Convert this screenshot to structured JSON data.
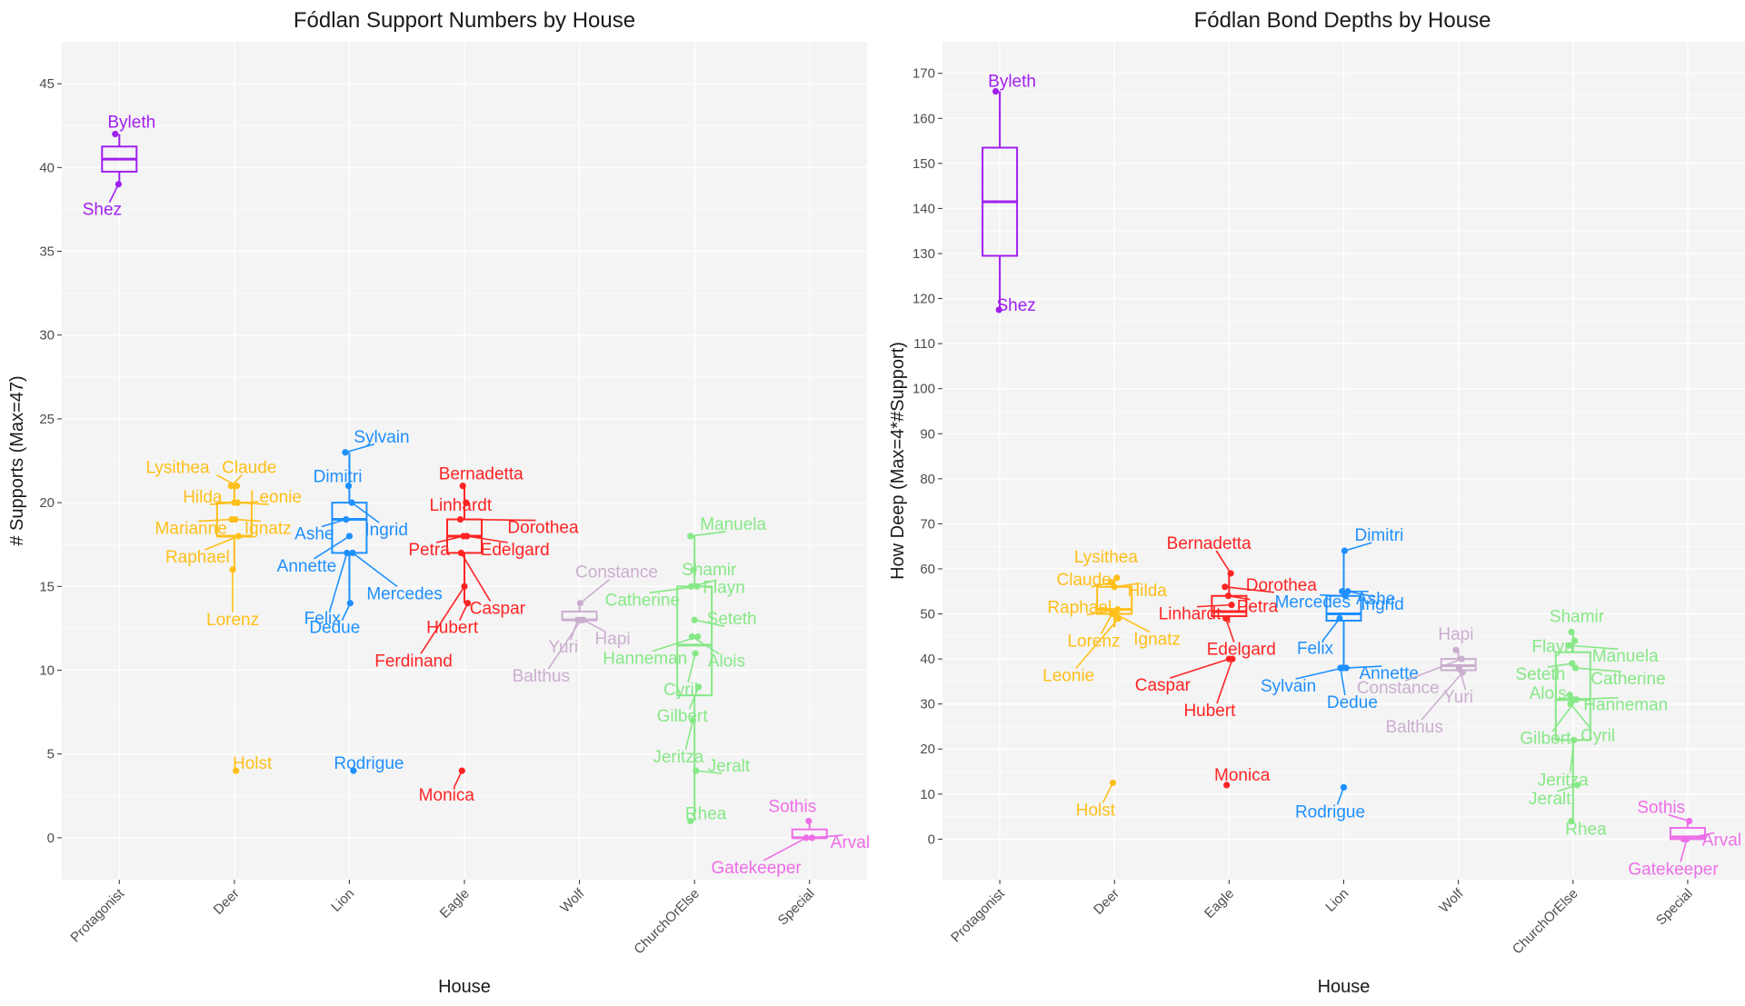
{
  "figure": {
    "colors": {
      "Protagonist": "#a020f0",
      "Deer": "#ffbf1a",
      "Lion": "#1e90ff",
      "Eagle": "#ff2424",
      "Wolf": "#cbaecf",
      "ChurchOrElse": "#86e886",
      "Special": "#ee6ee8"
    }
  },
  "chart_data": [
    {
      "type": "box",
      "title": "Fódlan Support Numbers by House",
      "xlabel": "House",
      "ylabel": "# Supports (Max=47)",
      "ylim": [
        -2.5,
        47.5
      ],
      "yticks": [
        0,
        5,
        10,
        15,
        20,
        25,
        30,
        35,
        40,
        45
      ],
      "categories": [
        "Protagonist",
        "Deer",
        "Lion",
        "Eagle",
        "Wolf",
        "ChurchOrElse",
        "Special"
      ],
      "grid": true,
      "boxes": [
        {
          "category": "Protagonist",
          "lower": 39,
          "q1": 39.75,
          "median": 40.5,
          "q3": 41.25,
          "upper": 42
        },
        {
          "category": "Deer",
          "lower": 16,
          "q1": 18,
          "median": 18,
          "q3": 20,
          "upper": 21
        },
        {
          "category": "Lion",
          "lower": 14,
          "q1": 17,
          "median": 19,
          "q3": 20,
          "upper": 23
        },
        {
          "category": "Eagle",
          "lower": 14,
          "q1": 17,
          "median": 18,
          "q3": 19,
          "upper": 21
        },
        {
          "category": "Wolf",
          "lower": 13,
          "q1": 13,
          "median": 13,
          "q3": 13.5,
          "upper": 14
        },
        {
          "category": "ChurchOrElse",
          "lower": 1,
          "q1": 8.5,
          "median": 11.5,
          "q3": 15,
          "upper": 18
        },
        {
          "category": "Special",
          "lower": 0,
          "q1": 0,
          "median": 0,
          "q3": 0.5,
          "upper": 1
        }
      ],
      "points": [
        {
          "label": "Byleth",
          "category": "Protagonist",
          "value": 42
        },
        {
          "label": "Shez",
          "category": "Protagonist",
          "value": 39
        },
        {
          "label": "Lysithea",
          "category": "Deer",
          "value": 21
        },
        {
          "label": "Claude",
          "category": "Deer",
          "value": 21
        },
        {
          "label": "Hilda",
          "category": "Deer",
          "value": 20
        },
        {
          "label": "Leonie",
          "category": "Deer",
          "value": 20
        },
        {
          "label": "Marianne",
          "category": "Deer",
          "value": 19
        },
        {
          "label": "Ignatz",
          "category": "Deer",
          "value": 19
        },
        {
          "label": "Raphael",
          "category": "Deer",
          "value": 18
        },
        {
          "label": "Lorenz",
          "category": "Deer",
          "value": 16
        },
        {
          "label": "Holst",
          "category": "Deer",
          "value": 4
        },
        {
          "label": "Sylvain",
          "category": "Lion",
          "value": 23
        },
        {
          "label": "Dimitri",
          "category": "Lion",
          "value": 21
        },
        {
          "label": "Ingrid",
          "category": "Lion",
          "value": 20
        },
        {
          "label": "Ashe",
          "category": "Lion",
          "value": 19
        },
        {
          "label": "Annette",
          "category": "Lion",
          "value": 18
        },
        {
          "label": "Mercedes",
          "category": "Lion",
          "value": 17
        },
        {
          "label": "Felix",
          "category": "Lion",
          "value": 17
        },
        {
          "label": "Dedue",
          "category": "Lion",
          "value": 14
        },
        {
          "label": "Rodrigue",
          "category": "Lion",
          "value": 4
        },
        {
          "label": "Bernadetta",
          "category": "Eagle",
          "value": 21
        },
        {
          "label": "Linhardt",
          "category": "Eagle",
          "value": 20
        },
        {
          "label": "Dorothea",
          "category": "Eagle",
          "value": 19
        },
        {
          "label": "Petra",
          "category": "Eagle",
          "value": 18
        },
        {
          "label": "Edelgard",
          "category": "Eagle",
          "value": 18
        },
        {
          "label": "Caspar",
          "category": "Eagle",
          "value": 17
        },
        {
          "label": "Ferdinand",
          "category": "Eagle",
          "value": 15
        },
        {
          "label": "Hubert",
          "category": "Eagle",
          "value": 14
        },
        {
          "label": "Monica",
          "category": "Eagle",
          "value": 4
        },
        {
          "label": "Constance",
          "category": "Wolf",
          "value": 14
        },
        {
          "label": "Hapi",
          "category": "Wolf",
          "value": 13
        },
        {
          "label": "Yuri",
          "category": "Wolf",
          "value": 13
        },
        {
          "label": "Balthus",
          "category": "Wolf",
          "value": 13
        },
        {
          "label": "Manuela",
          "category": "ChurchOrElse",
          "value": 18
        },
        {
          "label": "Shamir",
          "category": "ChurchOrElse",
          "value": 16
        },
        {
          "label": "Catherine",
          "category": "ChurchOrElse",
          "value": 15
        },
        {
          "label": "Flayn",
          "category": "ChurchOrElse",
          "value": 15
        },
        {
          "label": "Seteth",
          "category": "ChurchOrElse",
          "value": 13
        },
        {
          "label": "Hanneman",
          "category": "ChurchOrElse",
          "value": 12
        },
        {
          "label": "Alois",
          "category": "ChurchOrElse",
          "value": 12
        },
        {
          "label": "Cyril",
          "category": "ChurchOrElse",
          "value": 11
        },
        {
          "label": "Gilbert",
          "category": "ChurchOrElse",
          "value": 9
        },
        {
          "label": "Jeritza",
          "category": "ChurchOrElse",
          "value": 7
        },
        {
          "label": "Jeralt",
          "category": "ChurchOrElse",
          "value": 4
        },
        {
          "label": "Rhea",
          "category": "ChurchOrElse",
          "value": 1
        },
        {
          "label": "Sothis",
          "category": "Special",
          "value": 1
        },
        {
          "label": "Arval",
          "category": "Special",
          "value": 0
        },
        {
          "label": "Gatekeeper",
          "category": "Special",
          "value": 0
        }
      ]
    },
    {
      "type": "box",
      "title": "Fódlan Bond Depths by House",
      "xlabel": "House",
      "ylabel": "How Deep (Max=4*#Support)",
      "ylim": [
        -9,
        177
      ],
      "yticks": [
        0,
        10,
        20,
        30,
        40,
        50,
        60,
        70,
        80,
        90,
        100,
        110,
        120,
        130,
        140,
        150,
        160,
        170
      ],
      "categories": [
        "Protagonist",
        "Deer",
        "Eagle",
        "Lion",
        "Wolf",
        "ChurchOrElse",
        "Special"
      ],
      "grid": true,
      "boxes": [
        {
          "category": "Protagonist",
          "lower": 117,
          "q1": 129.5,
          "median": 141.5,
          "q3": 153.5,
          "upper": 166
        },
        {
          "category": "Deer",
          "lower": 47,
          "q1": 50,
          "median": 51,
          "q3": 56,
          "upper": 58
        },
        {
          "category": "Eagle",
          "lower": 48,
          "q1": 49.5,
          "median": 50.5,
          "q3": 54,
          "upper": 59
        },
        {
          "category": "Lion",
          "lower": 38,
          "q1": 48.5,
          "median": 50,
          "q3": 54,
          "upper": 64
        },
        {
          "category": "Wolf",
          "lower": 37,
          "q1": 37.5,
          "median": 38.5,
          "q3": 40,
          "upper": 42
        },
        {
          "category": "ChurchOrElse",
          "lower": 4,
          "q1": 22,
          "median": 31,
          "q3": 41.5,
          "upper": 46
        },
        {
          "category": "Special",
          "lower": 0,
          "q1": 0,
          "median": 0.5,
          "q3": 2.5,
          "upper": 4
        }
      ],
      "points": [
        {
          "label": "Byleth",
          "category": "Protagonist",
          "value": 166
        },
        {
          "label": "Shez",
          "category": "Protagonist",
          "value": 117.5
        },
        {
          "label": "Lysithea",
          "category": "Deer",
          "value": 58
        },
        {
          "label": "Claude",
          "category": "Deer",
          "value": 57
        },
        {
          "label": "Hilda",
          "category": "Deer",
          "value": 56
        },
        {
          "label": "Raphael",
          "category": "Deer",
          "value": 51
        },
        {
          "label": "Lorenz",
          "category": "Deer",
          "value": 50
        },
        {
          "label": "Ignatz",
          "category": "Deer",
          "value": 50
        },
        {
          "label": "Leonie",
          "category": "Deer",
          "value": 49
        },
        {
          "label": "Holst",
          "category": "Deer",
          "value": 12.5
        },
        {
          "label": "Bernadetta",
          "category": "Eagle",
          "value": 59
        },
        {
          "label": "Dorothea",
          "category": "Eagle",
          "value": 56
        },
        {
          "label": "Petra",
          "category": "Eagle",
          "value": 54
        },
        {
          "label": "Linhardt",
          "category": "Eagle",
          "value": 52
        },
        {
          "label": "Edelgard",
          "category": "Eagle",
          "value": 49
        },
        {
          "label": "Caspar",
          "category": "Eagle",
          "value": 40
        },
        {
          "label": "Hubert",
          "category": "Eagle",
          "value": 40
        },
        {
          "label": "Monica",
          "category": "Eagle",
          "value": 12
        },
        {
          "label": "Dimitri",
          "category": "Lion",
          "value": 64
        },
        {
          "label": "Ingrid",
          "category": "Lion",
          "value": 55
        },
        {
          "label": "Ashe",
          "category": "Lion",
          "value": 55
        },
        {
          "label": "Mercedes",
          "category": "Lion",
          "value": 54
        },
        {
          "label": "Felix",
          "category": "Lion",
          "value": 49
        },
        {
          "label": "Sylvain",
          "category": "Lion",
          "value": 38
        },
        {
          "label": "Annette",
          "category": "Lion",
          "value": 38
        },
        {
          "label": "Dedue",
          "category": "Lion",
          "value": 38
        },
        {
          "label": "Rodrigue",
          "category": "Lion",
          "value": 11.5
        },
        {
          "label": "Constance",
          "category": "Wolf",
          "value": 40
        },
        {
          "label": "Hapi",
          "category": "Wolf",
          "value": 42
        },
        {
          "label": "Yuri",
          "category": "Wolf",
          "value": 38
        },
        {
          "label": "Balthus",
          "category": "Wolf",
          "value": 37
        },
        {
          "label": "Shamir",
          "category": "ChurchOrElse",
          "value": 46
        },
        {
          "label": "Flayn",
          "category": "ChurchOrElse",
          "value": 44
        },
        {
          "label": "Manuela",
          "category": "ChurchOrElse",
          "value": 43
        },
        {
          "label": "Seteth",
          "category": "ChurchOrElse",
          "value": 39
        },
        {
          "label": "Catherine",
          "category": "ChurchOrElse",
          "value": 38
        },
        {
          "label": "Alois",
          "category": "ChurchOrElse",
          "value": 32
        },
        {
          "label": "Hanneman",
          "category": "ChurchOrElse",
          "value": 31
        },
        {
          "label": "Gilbert",
          "category": "ChurchOrElse",
          "value": 31
        },
        {
          "label": "Cyril",
          "category": "ChurchOrElse",
          "value": 30
        },
        {
          "label": "Jeritza",
          "category": "ChurchOrElse",
          "value": 22
        },
        {
          "label": "Jeralt",
          "category": "ChurchOrElse",
          "value": 12
        },
        {
          "label": "Rhea",
          "category": "ChurchOrElse",
          "value": 4
        },
        {
          "label": "Sothis",
          "category": "Special",
          "value": 4
        },
        {
          "label": "Arval",
          "category": "Special",
          "value": 0
        },
        {
          "label": "Gatekeeper",
          "category": "Special",
          "value": 0
        }
      ]
    }
  ]
}
